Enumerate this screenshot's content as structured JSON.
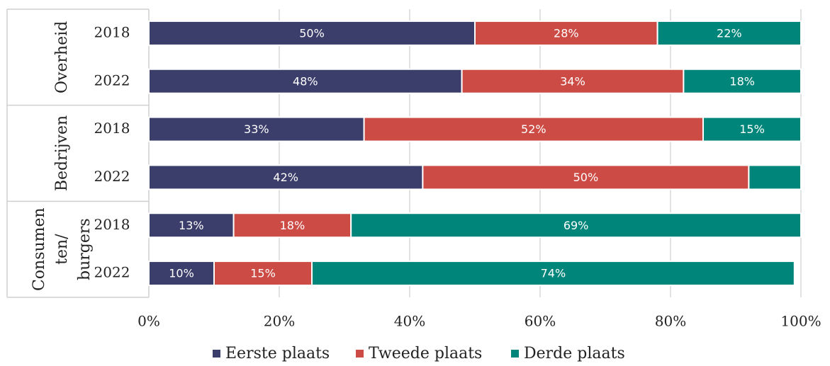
{
  "chart_data": {
    "type": "stacked-bar-horizontal",
    "groups": [
      {
        "label": [
          "Overheid"
        ],
        "categories": [
          "2018",
          "2022"
        ]
      },
      {
        "label": [
          "Bedrijven"
        ],
        "categories": [
          "2018",
          "2022"
        ]
      },
      {
        "label": [
          "Consumen",
          "ten/",
          "burgers"
        ],
        "categories": [
          "2018",
          "2022"
        ]
      }
    ],
    "series": [
      {
        "name": "Eerste plaats",
        "color": "#3b3d6b",
        "values": [
          50,
          48,
          33,
          42,
          13,
          10
        ],
        "value_labels": [
          "50%",
          "48%",
          "33%",
          "42%",
          "13%",
          "10%"
        ]
      },
      {
        "name": "Tweede plaats",
        "color": "#cc4b45",
        "values": [
          28,
          34,
          52,
          50,
          18,
          15
        ],
        "value_labels": [
          "28%",
          "34%",
          "52%",
          "50%",
          "18%",
          "15%"
        ]
      },
      {
        "name": "Derde plaats",
        "color": "#00857a",
        "values": [
          22,
          18,
          15,
          8,
          69,
          74
        ],
        "value_labels": [
          "22%",
          "18%",
          "15%",
          null,
          "69%",
          "74%"
        ]
      }
    ],
    "xlim": [
      0,
      100
    ],
    "xticks": [
      {
        "value": 0,
        "label": "0%"
      },
      {
        "value": 20,
        "label": "20%"
      },
      {
        "value": 40,
        "label": "40%"
      },
      {
        "value": 60,
        "label": "60%"
      },
      {
        "value": 80,
        "label": "80%"
      },
      {
        "value": 100,
        "label": "100%"
      }
    ],
    "grid": true,
    "legend": "bottom"
  }
}
